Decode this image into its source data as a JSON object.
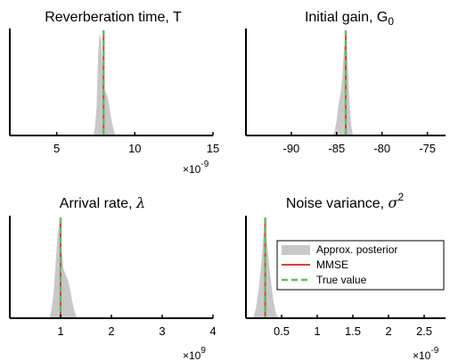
{
  "colors": {
    "posterior_fill": "#c8c8c8",
    "mmse_line": "#e8383c",
    "true_value_line": "#5ec05e",
    "axis": "#000000"
  },
  "legend": {
    "entries": [
      "Approx. posterior",
      "MMSE",
      "True value"
    ]
  },
  "chart_data": [
    {
      "type": "area",
      "title": "Reverberation time, T",
      "xlim": [
        2,
        15
      ],
      "xticks": [
        5,
        10,
        15
      ],
      "xtick_labels": [
        "5",
        "10",
        "15"
      ],
      "exponent": "×10",
      "exponent_power": "-9",
      "mmse": 8.0,
      "true_value": 8.0,
      "posterior": {
        "x": [
          7.35,
          7.45,
          7.55,
          7.65,
          7.75,
          7.85,
          7.95,
          8.05,
          8.15,
          8.25,
          8.35,
          8.45,
          8.55,
          8.65,
          8.75
        ],
        "density": [
          0,
          0.08,
          0.28,
          0.8,
          1.0,
          0.95,
          0.62,
          0.45,
          0.42,
          0.38,
          0.3,
          0.2,
          0.12,
          0.05,
          0
        ]
      }
    },
    {
      "type": "area",
      "title": "Initial gain, G",
      "title_sub": "0",
      "xlim": [
        -95,
        -73
      ],
      "xticks": [
        -90,
        -85,
        -80,
        -75
      ],
      "xtick_labels": [
        "-90",
        "-85",
        "-80",
        "-75"
      ],
      "mmse": -84.0,
      "true_value": -84.0,
      "posterior": {
        "x": [
          -85.4,
          -85.2,
          -85.0,
          -84.8,
          -84.6,
          -84.4,
          -84.2,
          -84.0,
          -83.8,
          -83.6,
          -83.4,
          -83.2
        ],
        "density": [
          0,
          0.05,
          0.15,
          0.3,
          0.4,
          0.55,
          0.85,
          1.0,
          0.75,
          0.35,
          0.1,
          0
        ]
      }
    },
    {
      "type": "area",
      "title": "Arrival rate, λ",
      "xlim": [
        0,
        4
      ],
      "xticks": [
        1,
        2,
        3,
        4
      ],
      "xtick_labels": [
        "1",
        "2",
        "3",
        "4"
      ],
      "exponent": "×10",
      "exponent_power": "9",
      "mmse": 1.0,
      "true_value": 1.0,
      "posterior": {
        "x": [
          0.78,
          0.82,
          0.86,
          0.9,
          0.94,
          0.98,
          1.02,
          1.06,
          1.1,
          1.14,
          1.18,
          1.22,
          1.26,
          1.3,
          1.34
        ],
        "density": [
          0,
          0.08,
          0.25,
          0.55,
          0.85,
          1.0,
          0.7,
          0.5,
          0.45,
          0.4,
          0.32,
          0.2,
          0.1,
          0.03,
          0
        ]
      }
    },
    {
      "type": "area",
      "title": "Noise variance, σ",
      "title_sup": "2",
      "xlim": [
        0,
        2.8
      ],
      "xticks": [
        0.5,
        1,
        1.5,
        2,
        2.5
      ],
      "xtick_labels": [
        "0.5",
        "1",
        "1.5",
        "2",
        "2.5"
      ],
      "exponent": "×10",
      "exponent_power": "-9",
      "mmse": 0.27,
      "true_value": 0.27,
      "posterior": {
        "x": [
          0.1,
          0.14,
          0.18,
          0.22,
          0.26,
          0.3,
          0.34,
          0.38,
          0.42,
          0.46
        ],
        "density": [
          0,
          0.1,
          0.3,
          0.6,
          1.0,
          0.75,
          0.45,
          0.2,
          0.05,
          0
        ]
      }
    }
  ]
}
